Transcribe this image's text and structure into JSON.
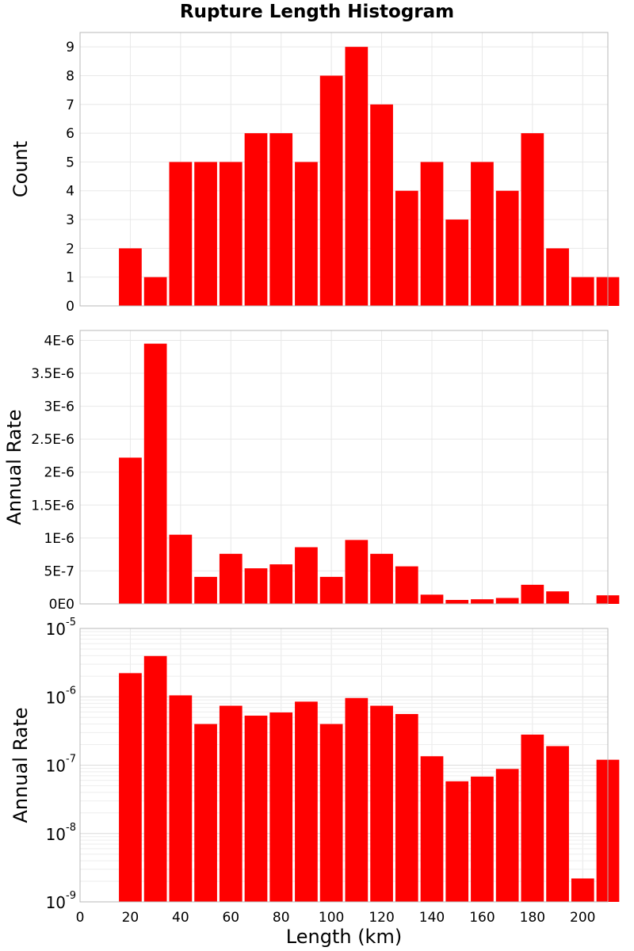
{
  "chart_data": {
    "title": "Rupture Length Histogram",
    "bar_color": "#ff0000",
    "x": {
      "label": "Length (km)",
      "range": [
        0,
        210
      ],
      "ticks": [
        0,
        20,
        40,
        60,
        80,
        100,
        120,
        140,
        160,
        180,
        200
      ],
      "tick_labels": [
        "0",
        "20",
        "40",
        "60",
        "80",
        "100",
        "120",
        "140",
        "160",
        "180",
        "200"
      ]
    },
    "bin_centers": [
      20,
      30,
      40,
      50,
      60,
      70,
      80,
      90,
      100,
      110,
      120,
      130,
      140,
      150,
      160,
      170,
      180,
      190,
      200,
      210
    ],
    "bin_width": 10,
    "panels": [
      {
        "type": "bar",
        "ylabel": "Count",
        "yscale": "linear",
        "ylim": [
          0,
          9.5
        ],
        "yticks": [
          0,
          1,
          2,
          3,
          4,
          5,
          6,
          7,
          8,
          9
        ],
        "ytick_labels": [
          "0",
          "1",
          "2",
          "3",
          "4",
          "5",
          "6",
          "7",
          "8",
          "9"
        ],
        "grid": true,
        "values": [
          2,
          1,
          5,
          5,
          5,
          6,
          6,
          5,
          8,
          9,
          7,
          4,
          5,
          3,
          5,
          4,
          6,
          2,
          1,
          1
        ]
      },
      {
        "type": "bar",
        "ylabel": "Annual Rate",
        "yscale": "linear",
        "ylim": [
          0,
          4.15e-06
        ],
        "yticks": [
          0,
          5e-07,
          1e-06,
          1.5e-06,
          2e-06,
          2.5e-06,
          3e-06,
          3.5e-06,
          4e-06
        ],
        "ytick_labels": [
          "0E0",
          "5E-7",
          "1E-6",
          "1.5E-6",
          "2E-6",
          "2.5E-6",
          "3E-6",
          "3.5E-6",
          "4E-6"
        ],
        "grid": true,
        "values": [
          2.22e-06,
          3.95e-06,
          1.05e-06,
          4.1e-07,
          7.6e-07,
          5.4e-07,
          6e-07,
          8.6e-07,
          4.1e-07,
          9.7e-07,
          7.6e-07,
          5.7e-07,
          1.4e-07,
          6e-08,
          7e-08,
          9e-08,
          2.9e-07,
          1.9e-07,
          0,
          1.3e-07
        ]
      },
      {
        "type": "bar",
        "ylabel": "Annual Rate",
        "yscale": "log",
        "ylim": [
          1e-09,
          1e-05
        ],
        "yticks": [
          1e-09,
          1e-08,
          1e-07,
          1e-06,
          1e-05
        ],
        "ytick_exponents": [
          "-9",
          "-8",
          "-7",
          "-6",
          "-5"
        ],
        "grid": true,
        "values": [
          2.22e-06,
          3.95e-06,
          1.05e-06,
          4e-07,
          7.4e-07,
          5.3e-07,
          5.9e-07,
          8.5e-07,
          4e-07,
          9.6e-07,
          7.4e-07,
          5.6e-07,
          1.35e-07,
          5.8e-08,
          6.8e-08,
          8.8e-08,
          2.8e-07,
          1.9e-07,
          2.2e-09,
          1.2e-07
        ]
      }
    ]
  }
}
